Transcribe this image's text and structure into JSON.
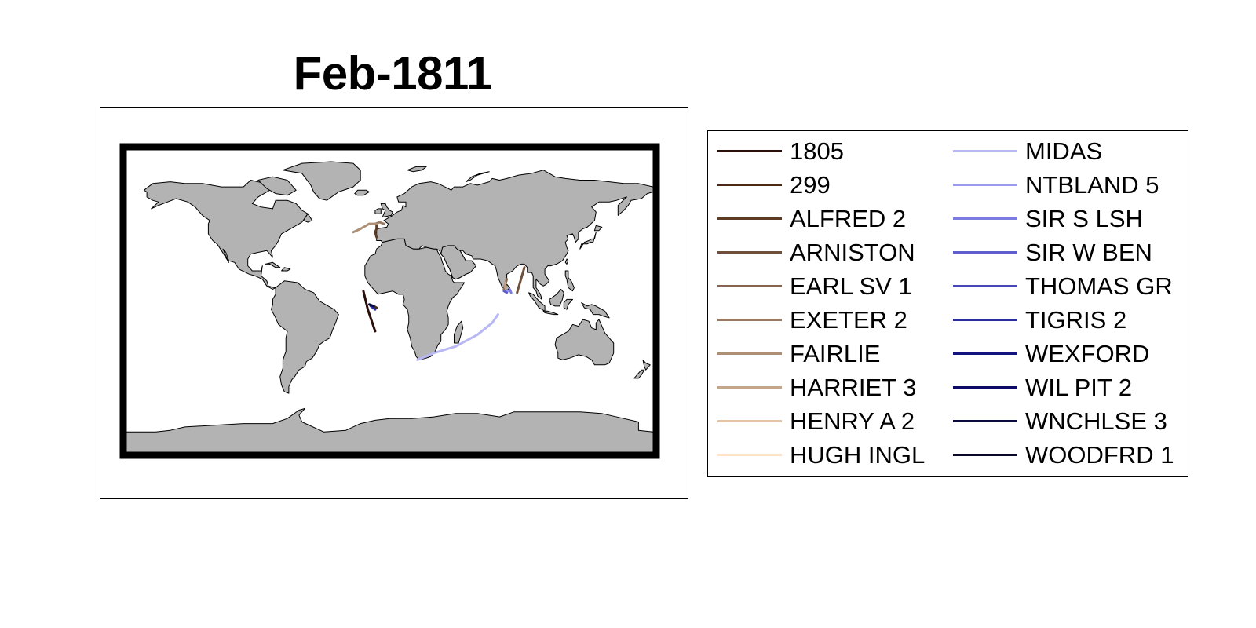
{
  "title": "Feb-1811",
  "map": {
    "land_color": "#b3b3b3",
    "coast_color": "#000000",
    "ocean_color": "#ffffff",
    "projection": "equirectangular",
    "frame": "thick black neatline"
  },
  "legend": {
    "columns": 2,
    "items": [
      {
        "label": "1805",
        "color": "#2a0f0b"
      },
      {
        "label": "299",
        "color": "#4a2a15"
      },
      {
        "label": "ALFRED 2",
        "color": "#5e3c24"
      },
      {
        "label": "ARNISTON",
        "color": "#70503a"
      },
      {
        "label": "EARL SV 1",
        "color": "#856550"
      },
      {
        "label": "EXETER 2",
        "color": "#9a7a62"
      },
      {
        "label": "FAIRLIE",
        "color": "#ad8f76"
      },
      {
        "label": "HARRIET 3",
        "color": "#c4a68a"
      },
      {
        "label": "HENRY A 2",
        "color": "#e3c4a6"
      },
      {
        "label": "HUGH INGL",
        "color": "#fde3c8"
      },
      {
        "label": "MIDAS",
        "color": "#b8b8f4"
      },
      {
        "label": "NTBLAND 5",
        "color": "#9a9af0"
      },
      {
        "label": "SIR S LSH",
        "color": "#7c7ce0"
      },
      {
        "label": "SIR W BEN",
        "color": "#5e5ecc"
      },
      {
        "label": "THOMAS GR",
        "color": "#4646b4"
      },
      {
        "label": "TIGRIS 2",
        "color": "#2c2c9c"
      },
      {
        "label": "WEXFORD",
        "color": "#14147e"
      },
      {
        "label": "WIL PIT 2",
        "color": "#0c0c66"
      },
      {
        "label": "WNCHLSE 3",
        "color": "#0a0a3e"
      },
      {
        "label": "WOODFRD 1",
        "color": "#0a0a26"
      }
    ]
  },
  "tracks": [
    {
      "ship": "1805",
      "points": [
        [
          -18,
          6
        ],
        [
          -15,
          -5
        ],
        [
          -10,
          -18
        ]
      ]
    },
    {
      "ship": "299",
      "points": [
        [
          -11,
          -3
        ],
        [
          -9,
          -4
        ]
      ]
    },
    {
      "ship": "ALFRED 2",
      "points": [
        [
          -9,
          46
        ],
        [
          -9,
          43
        ],
        [
          -10,
          41
        ],
        [
          -9,
          38
        ]
      ]
    },
    {
      "ship": "ARNISTON",
      "points": [
        [
          92,
          20
        ],
        [
          90,
          14
        ],
        [
          88,
          8
        ],
        [
          87,
          5
        ]
      ]
    },
    {
      "ship": "EARL SV 1",
      "points": [
        [
          80,
          13
        ],
        [
          79,
          10
        ],
        [
          78,
          7
        ]
      ]
    },
    {
      "ship": "EXETER 2",
      "points": [
        [
          -10,
          46
        ],
        [
          -7,
          47
        ],
        [
          -4,
          46
        ]
      ]
    },
    {
      "ship": "FAIRLIE",
      "points": [
        [
          -25,
          41
        ],
        [
          -20,
          43
        ],
        [
          -14,
          46
        ],
        [
          -9,
          46
        ]
      ]
    },
    {
      "ship": "HARRIET 3",
      "points": [
        [
          79,
          11
        ],
        [
          79,
          8
        ]
      ]
    },
    {
      "ship": "MIDAS",
      "points": [
        [
          19,
          -35
        ],
        [
          30,
          -31
        ],
        [
          45,
          -27
        ],
        [
          60,
          -20
        ],
        [
          70,
          -13
        ],
        [
          74,
          -8
        ]
      ]
    },
    {
      "ship": "NTBLAND 5",
      "points": [
        [
          80,
          6
        ],
        [
          82,
          6
        ]
      ]
    },
    {
      "ship": "SIR S LSH",
      "points": [
        [
          82,
          7
        ],
        [
          83,
          5
        ]
      ]
    },
    {
      "ship": "SIR W BEN",
      "points": [
        [
          78,
          6
        ],
        [
          80,
          5
        ]
      ]
    },
    {
      "ship": "TIGRIS 2",
      "points": [
        [
          -13,
          -3
        ],
        [
          -10,
          -5
        ]
      ]
    },
    {
      "ship": "WNCHLSE 3",
      "points": [
        [
          -14,
          -2
        ],
        [
          -11,
          -3
        ]
      ]
    }
  ]
}
